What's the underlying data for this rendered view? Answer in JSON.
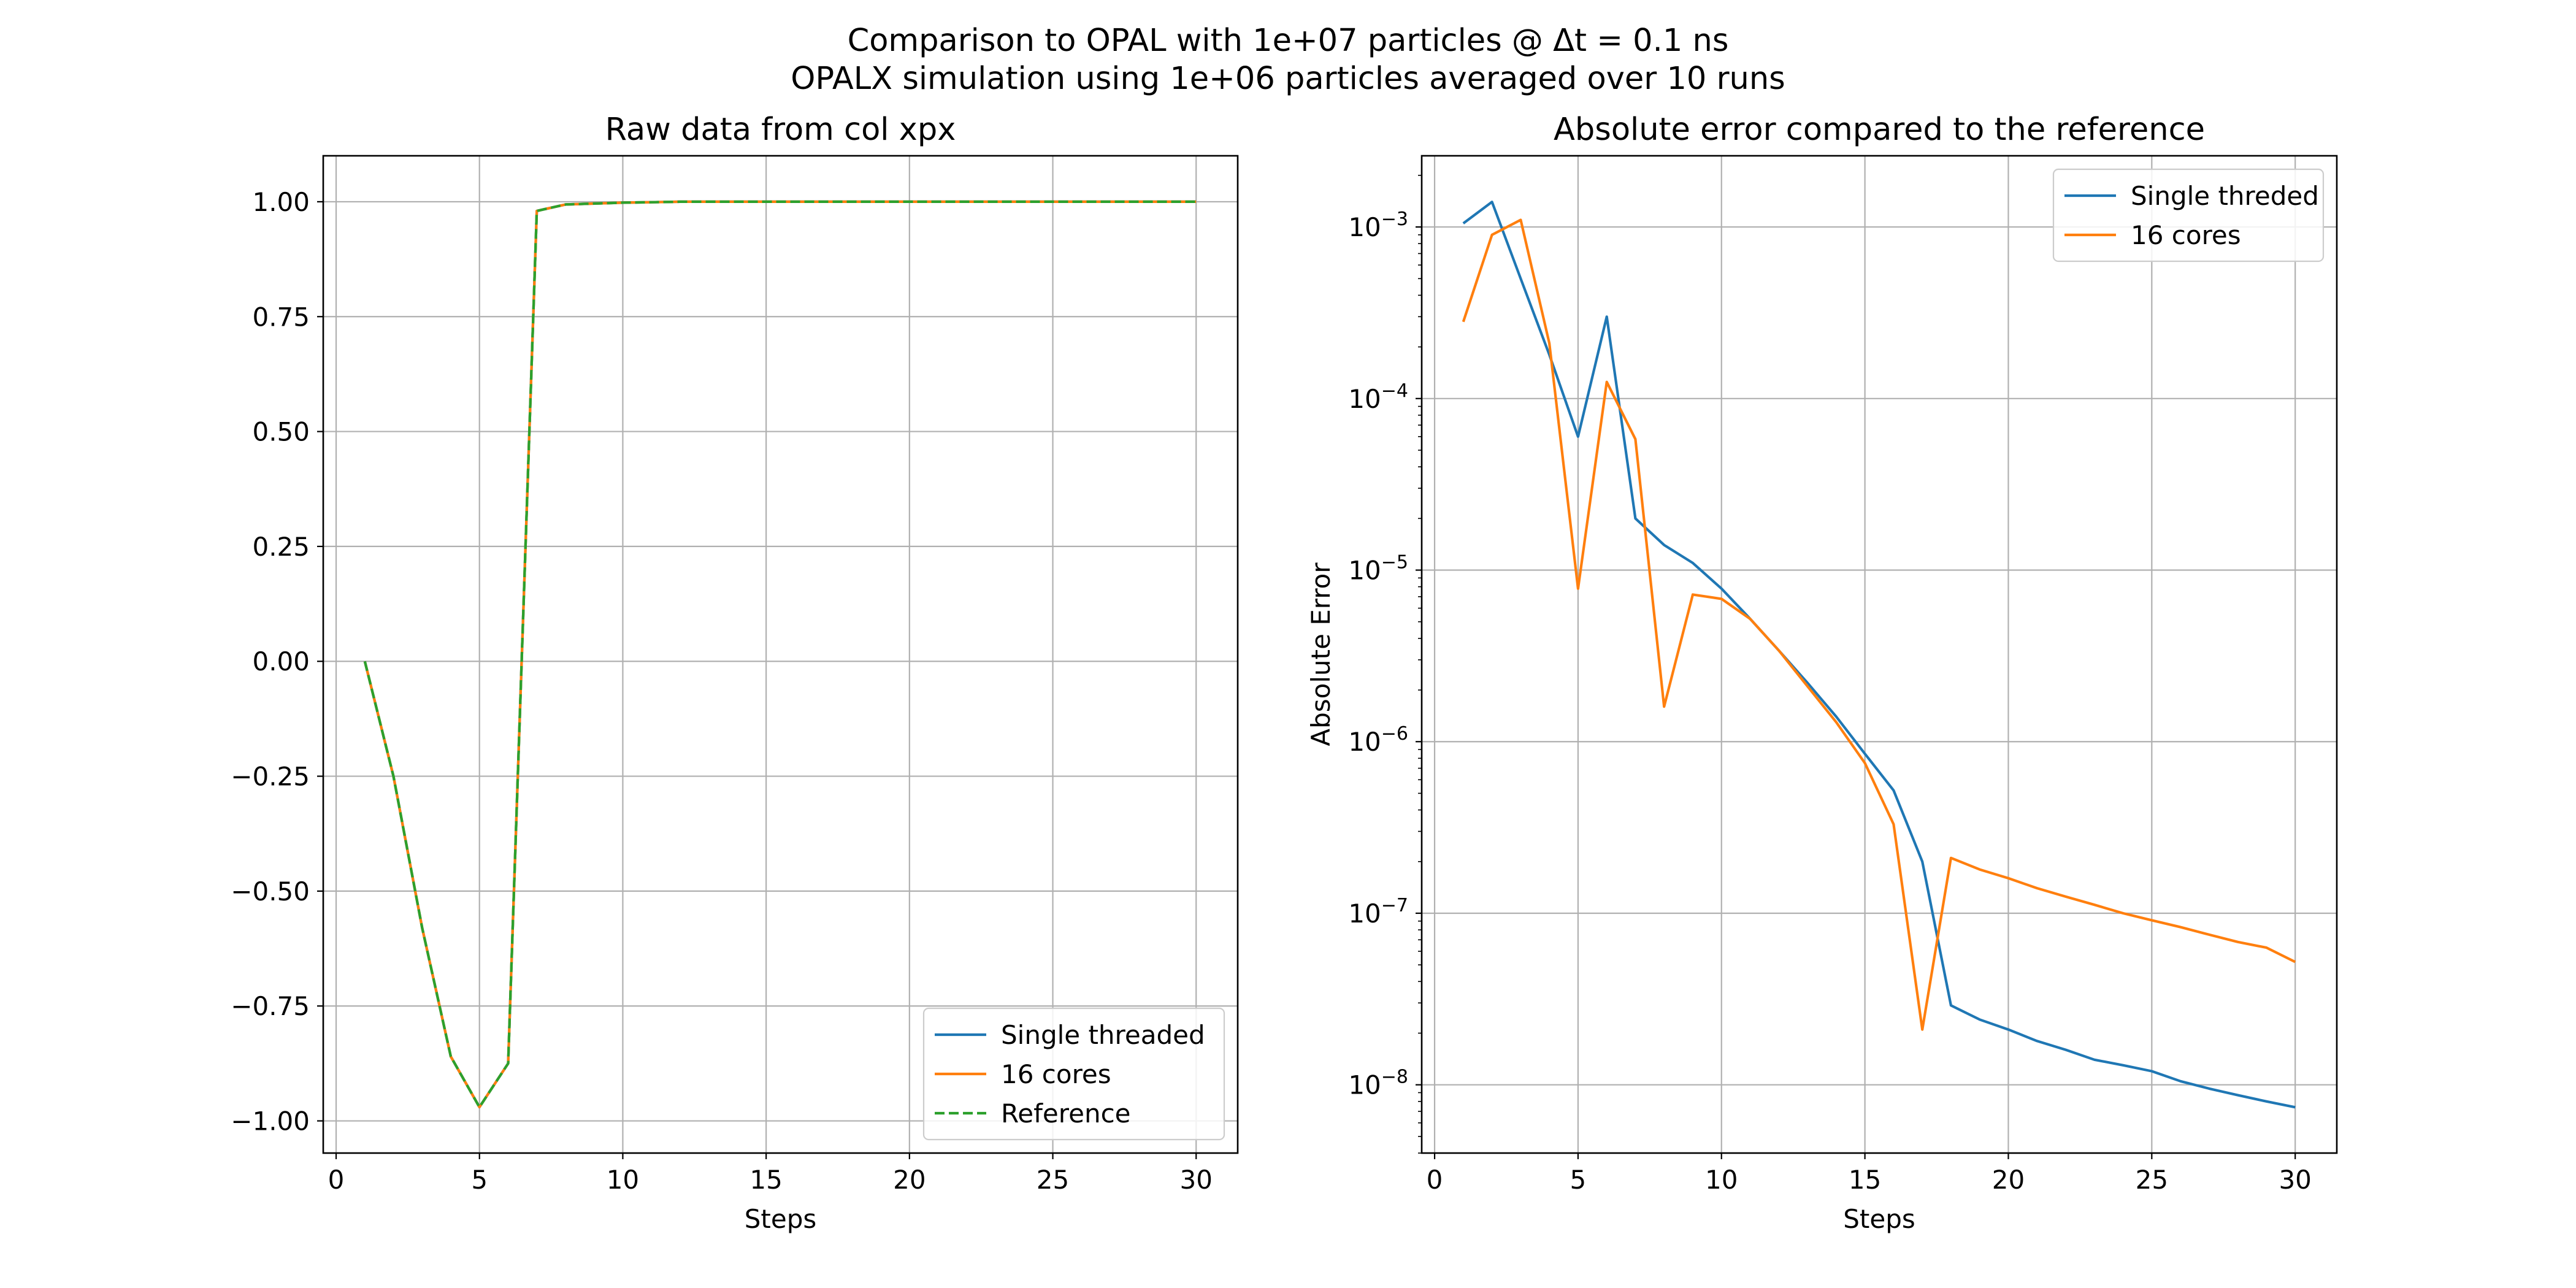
{
  "figure": {
    "title_line1": "Comparison to OPAL with 1e+07 particles @ Δt = 0.1 ns",
    "title_line2": "OPALX simulation using 1e+06 particles averaged over 10 runs"
  },
  "chart_data": [
    {
      "type": "line",
      "title": "Raw data from col xpx",
      "xlabel": "Steps",
      "ylabel": "",
      "xlim": [
        -0.45,
        31.45
      ],
      "ylim": [
        -1.07,
        1.1
      ],
      "xticks": [
        0,
        5,
        10,
        15,
        20,
        25,
        30
      ],
      "yticks": [
        -1.0,
        -0.75,
        -0.5,
        -0.25,
        0.0,
        0.25,
        0.5,
        0.75,
        1.0
      ],
      "ytick_labels": [
        "−1.00",
        "−0.75",
        "−0.50",
        "−0.25",
        "0.00",
        "0.25",
        "0.50",
        "0.75",
        "1.00"
      ],
      "yscale": "linear",
      "grid": true,
      "legend_position": "lower right",
      "x": [
        1,
        2,
        3,
        4,
        5,
        6,
        7,
        8,
        9,
        10,
        11,
        12,
        13,
        14,
        15,
        16,
        17,
        18,
        19,
        20,
        21,
        22,
        23,
        24,
        25,
        26,
        27,
        28,
        29,
        30
      ],
      "series": [
        {
          "name": "Single threaded",
          "color": "#1f77b4",
          "style": "solid",
          "values": [
            0.0,
            -0.25,
            -0.58,
            -0.86,
            -0.97,
            -0.875,
            0.98,
            0.994,
            0.996,
            0.998,
            0.999,
            1.0,
            1.0,
            1.0,
            1.0,
            1.0,
            1.0,
            1.0,
            1.0,
            1.0,
            1.0,
            1.0,
            1.0,
            1.0,
            1.0,
            1.0,
            1.0,
            1.0,
            1.0,
            1.0
          ]
        },
        {
          "name": "16 cores",
          "color": "#ff7f0e",
          "style": "solid",
          "values": [
            0.0,
            -0.25,
            -0.58,
            -0.86,
            -0.97,
            -0.875,
            0.98,
            0.994,
            0.996,
            0.998,
            0.999,
            1.0,
            1.0,
            1.0,
            1.0,
            1.0,
            1.0,
            1.0,
            1.0,
            1.0,
            1.0,
            1.0,
            1.0,
            1.0,
            1.0,
            1.0,
            1.0,
            1.0,
            1.0,
            1.0
          ]
        },
        {
          "name": "Reference",
          "color": "#2ca02c",
          "style": "dashed",
          "values": [
            0.0,
            -0.25,
            -0.58,
            -0.86,
            -0.97,
            -0.875,
            0.98,
            0.994,
            0.996,
            0.998,
            0.999,
            1.0,
            1.0,
            1.0,
            1.0,
            1.0,
            1.0,
            1.0,
            1.0,
            1.0,
            1.0,
            1.0,
            1.0,
            1.0,
            1.0,
            1.0,
            1.0,
            1.0,
            1.0,
            1.0
          ]
        }
      ]
    },
    {
      "type": "line",
      "title": "Absolute error compared to the reference",
      "xlabel": "Steps",
      "ylabel": "Absolute Error",
      "xlim": [
        -0.45,
        31.45
      ],
      "ylim": [
        4e-09,
        0.0026
      ],
      "xticks": [
        0,
        5,
        10,
        15,
        20,
        25,
        30
      ],
      "yscale": "log",
      "yticks_exponents": [
        -8,
        -7,
        -6,
        -5,
        -4,
        -3
      ],
      "grid": true,
      "legend_position": "upper right",
      "x": [
        1,
        2,
        3,
        4,
        5,
        6,
        7,
        8,
        9,
        10,
        11,
        12,
        13,
        14,
        15,
        16,
        17,
        18,
        19,
        20,
        21,
        22,
        23,
        24,
        25,
        26,
        27,
        28,
        29,
        30
      ],
      "series": [
        {
          "name": "Single threded",
          "color": "#1f77b4",
          "style": "solid",
          "values": [
            0.00105,
            0.0014,
            0.0005,
            0.00018,
            6e-05,
            0.0003,
            2e-05,
            1.4e-05,
            1.1e-05,
            7.8e-06,
            5.2e-06,
            3.4e-06,
            2.2e-06,
            1.4e-06,
            8.5e-07,
            5.2e-07,
            2e-07,
            2.9e-08,
            2.4e-08,
            2.1e-08,
            1.8e-08,
            1.6e-08,
            1.4e-08,
            1.3e-08,
            1.2e-08,
            1.05e-08,
            9.5e-09,
            8.7e-09,
            8e-09,
            7.4e-09
          ]
        },
        {
          "name": "16 cores",
          "color": "#ff7f0e",
          "style": "solid",
          "values": [
            0.00028,
            0.0009,
            0.0011,
            0.00021,
            7.8e-06,
            0.000125,
            5.8e-05,
            1.6e-06,
            7.2e-06,
            6.8e-06,
            5.2e-06,
            3.4e-06,
            2.1e-06,
            1.3e-06,
            7.5e-07,
            3.3e-07,
            2.1e-08,
            2.1e-07,
            1.8e-07,
            1.6e-07,
            1.4e-07,
            1.25e-07,
            1.12e-07,
            1e-07,
            9.1e-08,
            8.3e-08,
            7.5e-08,
            6.8e-08,
            6.3e-08,
            5.2e-08
          ]
        }
      ]
    }
  ]
}
